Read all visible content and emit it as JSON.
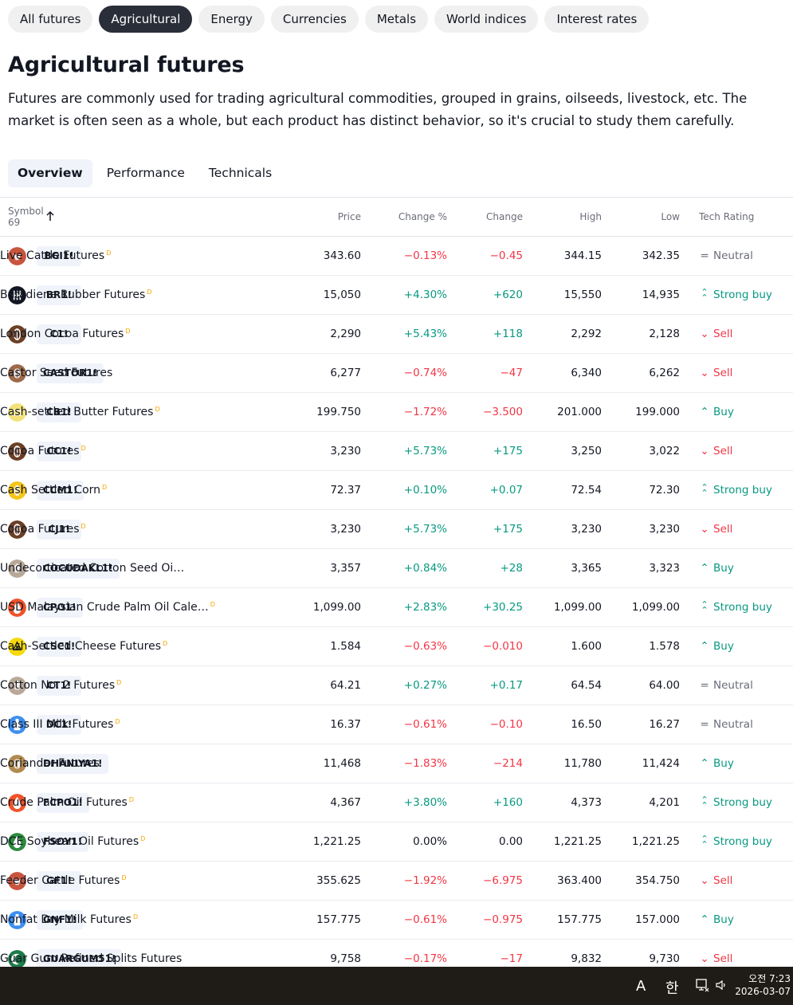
{
  "top_nav": [
    {
      "label": "All futures",
      "active": false
    },
    {
      "label": "Agricultural",
      "active": true
    },
    {
      "label": "Energy",
      "active": false
    },
    {
      "label": "Currencies",
      "active": false
    },
    {
      "label": "Metals",
      "active": false
    },
    {
      "label": "World indices",
      "active": false
    },
    {
      "label": "Interest rates",
      "active": false
    }
  ],
  "page": {
    "title": "Agricultural futures",
    "description": "Futures are commonly used for trading agricultural commodities, grouped in grains, oilseeds, livestock, etc. The market is often seen as a whole, but each product has distinct behavior, so it's crucial to study them carefully."
  },
  "sub_tabs": [
    {
      "label": "Overview",
      "active": true
    },
    {
      "label": "Performance",
      "active": false
    },
    {
      "label": "Technicals",
      "active": false
    }
  ],
  "table": {
    "headers": {
      "symbol": "Symbol",
      "count": "69",
      "price": "Price",
      "change_pct": "Change %",
      "change": "Change",
      "high": "High",
      "low": "Low",
      "tech_rating": "Tech Rating"
    },
    "rows": [
      {
        "ticker": "BGI1!",
        "name": "Live Cattle Futures",
        "flag": "D",
        "price": "343.60",
        "change_pct": "−0.13%",
        "change": "−0.45",
        "high": "344.15",
        "low": "342.35",
        "rating": "Neutral",
        "icon": "cattle-icon",
        "icon_color": "#c8553d"
      },
      {
        "ticker": "BR1!",
        "name": "Butadiene Rubber Futures",
        "flag": "D",
        "price": "15,050",
        "change_pct": "+4.30%",
        "change": "+620",
        "high": "15,550",
        "low": "14,935",
        "rating": "Strong buy",
        "icon": "rubber-icon",
        "icon_color": "#131722"
      },
      {
        "ticker": "C1!",
        "name": "London Cocoa Futures",
        "flag": "D",
        "price": "2,290",
        "change_pct": "+5.43%",
        "change": "+118",
        "high": "2,292",
        "low": "2,128",
        "rating": "Sell",
        "icon": "cocoa-icon",
        "icon_color": "#6b3f26"
      },
      {
        "ticker": "CASTOR1!",
        "name": "Castor Seed Futures",
        "flag": "",
        "price": "6,277",
        "change_pct": "−0.74%",
        "change": "−47",
        "high": "6,340",
        "low": "6,262",
        "rating": "Sell",
        "icon": "seed-icon",
        "icon_color": "#9b6a4a"
      },
      {
        "ticker": "CB1!",
        "name": "Cash-settled Butter Futures",
        "flag": "D",
        "price": "199.750",
        "change_pct": "−1.72%",
        "change": "−3.500",
        "high": "201.000",
        "low": "199.000",
        "rating": "Buy",
        "icon": "butter-icon",
        "icon_color": "#f3e27a"
      },
      {
        "ticker": "CC1!",
        "name": "Cocoa Futures",
        "flag": "D",
        "price": "3,230",
        "change_pct": "+5.73%",
        "change": "+175",
        "high": "3,250",
        "low": "3,022",
        "rating": "Sell",
        "icon": "cocoa-icon",
        "icon_color": "#6b3f26"
      },
      {
        "ticker": "CCM1!",
        "name": "Cash Settled Corn",
        "flag": "D",
        "price": "72.37",
        "change_pct": "+0.10%",
        "change": "+0.07",
        "high": "72.54",
        "low": "72.30",
        "rating": "Strong buy",
        "icon": "corn-icon",
        "icon_color": "#f5c518"
      },
      {
        "ticker": "CJ1!",
        "name": "Cocoa Futures",
        "flag": "D",
        "price": "3,230",
        "change_pct": "+5.73%",
        "change": "+175",
        "high": "3,230",
        "low": "3,230",
        "rating": "Sell",
        "icon": "cocoa-icon",
        "icon_color": "#6b3f26"
      },
      {
        "ticker": "COCUDAKL1!",
        "name": "Undecorticated Cotton Seed Oi…",
        "flag": "",
        "price": "3,357",
        "change_pct": "+0.84%",
        "change": "+28",
        "high": "3,365",
        "low": "3,323",
        "rating": "Buy",
        "icon": "cotton-icon",
        "icon_color": "#b8a898"
      },
      {
        "ticker": "CPO1!",
        "name": "USD Malaysian Crude Palm Oil Cale…",
        "flag": "D",
        "price": "1,099.00",
        "change_pct": "+2.83%",
        "change": "+30.25",
        "high": "1,099.00",
        "low": "1,099.00",
        "rating": "Strong buy",
        "icon": "palm-oil-icon",
        "icon_color": "#f0532a"
      },
      {
        "ticker": "CSC1!",
        "name": "Cash-Settled Cheese Futures",
        "flag": "D",
        "price": "1.584",
        "change_pct": "−0.63%",
        "change": "−0.010",
        "high": "1.600",
        "low": "1.578",
        "rating": "Buy",
        "icon": "cheese-icon",
        "icon_color": "#f5d90a"
      },
      {
        "ticker": "CT1!",
        "name": "Cotton No. 2 Futures",
        "flag": "D",
        "price": "64.21",
        "change_pct": "+0.27%",
        "change": "+0.17",
        "high": "64.54",
        "low": "64.00",
        "rating": "Neutral",
        "icon": "cotton-icon",
        "icon_color": "#b8a898"
      },
      {
        "ticker": "DC1!",
        "name": "Class III Milk Futures",
        "flag": "D",
        "price": "16.37",
        "change_pct": "−0.61%",
        "change": "−0.10",
        "high": "16.50",
        "low": "16.27",
        "rating": "Neutral",
        "icon": "milk-icon",
        "icon_color": "#3d8ef0"
      },
      {
        "ticker": "DHANIYA1!",
        "name": "Coriander Futures",
        "flag": "",
        "price": "11,468",
        "change_pct": "−1.83%",
        "change": "−214",
        "high": "11,780",
        "low": "11,424",
        "rating": "Buy",
        "icon": "seed-icon",
        "icon_color": "#b08a50"
      },
      {
        "ticker": "FCPO1!",
        "name": "Crude Palm Oil Futures",
        "flag": "D",
        "price": "4,367",
        "change_pct": "+3.80%",
        "change": "+160",
        "high": "4,373",
        "low": "4,201",
        "rating": "Strong buy",
        "icon": "palm-oil-icon",
        "icon_color": "#f0532a"
      },
      {
        "ticker": "FSOY1!",
        "name": "DCE Soybean Oil Futures",
        "flag": "D",
        "price": "1,221.25",
        "change_pct": "0.00%",
        "change": "0.00",
        "high": "1,221.25",
        "low": "1,221.25",
        "rating": "Strong buy",
        "icon": "soybean-oil-icon",
        "icon_color": "#2e8b3e"
      },
      {
        "ticker": "GF1!",
        "name": "Feeder Cattle Futures",
        "flag": "D",
        "price": "355.625",
        "change_pct": "−1.92%",
        "change": "−6.975",
        "high": "363.400",
        "low": "354.750",
        "rating": "Sell",
        "icon": "cattle-icon",
        "icon_color": "#c8553d"
      },
      {
        "ticker": "GNF1!",
        "name": "Nonfat Dry Milk Futures",
        "flag": "D",
        "price": "157.775",
        "change_pct": "−0.61%",
        "change": "−0.975",
        "high": "157.775",
        "low": "157.000",
        "rating": "Buy",
        "icon": "milk-icon",
        "icon_color": "#3d8ef0"
      },
      {
        "ticker": "GUARGUM51!",
        "name": "Guar Gum Refined Splits Futures",
        "flag": "",
        "price": "9,758",
        "change_pct": "−0.17%",
        "change": "−17",
        "high": "9,832",
        "low": "9,730",
        "rating": "Sell",
        "icon": "guar-gum-icon",
        "icon_color": "#1e7a4a"
      }
    ]
  },
  "taskbar": {
    "ime_a": "A",
    "ime_han": "한",
    "time": "오전 7:23",
    "date": "2026-03-07"
  },
  "colors": {
    "positive": "#089981",
    "negative": "#f23645",
    "neutral": "#6a6d78",
    "date_flag": "#f7a600"
  }
}
